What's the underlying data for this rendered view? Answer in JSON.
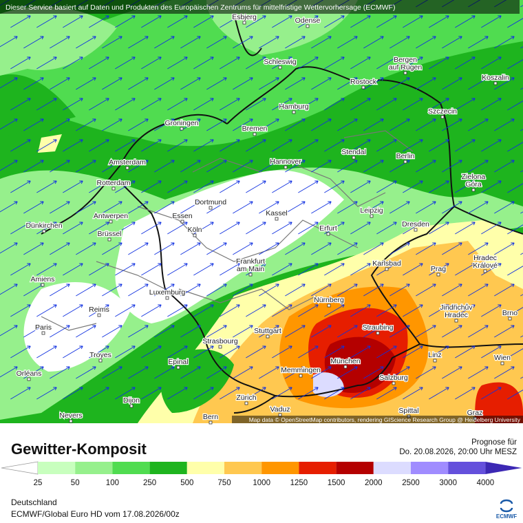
{
  "header": "Dieser Service basiert auf Daten und Produkten des Europäischen Zentrums für mittelfristige Wettervorhersage (ECMWF)",
  "attribution": "Map data © OpenStreetMap contributors, rendering GIScience Research Group @ Heidelberg University",
  "cities": [
    [
      "Esbjerg"
    ],
    [
      "Odense"
    ],
    [
      "Schleswig"
    ],
    [
      "Bergen",
      "auf Rügen"
    ],
    [
      "Rostock"
    ],
    [
      "Koszalin"
    ],
    [
      "Hamburg"
    ],
    [
      "Szczecin"
    ],
    [
      "Groningen"
    ],
    [
      "Bremen"
    ],
    [
      "Stendal"
    ],
    [
      "Berlin"
    ],
    [
      "Hannover"
    ],
    [
      "Amsterdam"
    ],
    [
      "Zielona",
      "Góra"
    ],
    [
      "Rotterdam"
    ],
    [
      "Dortmund"
    ],
    [
      "Leipzig"
    ],
    [
      "Kassel"
    ],
    [
      "Essen"
    ],
    [
      "Antwerpen"
    ],
    [
      "Dresden"
    ],
    [
      "Dünkirchen"
    ],
    [
      "Köln"
    ],
    [
      "Erfurt"
    ],
    [
      "Brüssel"
    ],
    [
      "Frankfurt",
      "am Main"
    ],
    [
      "Karlsbad"
    ],
    [
      "Hradec",
      "Králové"
    ],
    [
      "Prag"
    ],
    [
      "Amiens"
    ],
    [
      "Luxemburg"
    ],
    [
      "Nürnberg"
    ],
    [
      "Jindřichův",
      "Hradec"
    ],
    [
      "Brno"
    ],
    [
      "Reims"
    ],
    [
      "Paris"
    ],
    [
      "Straubing"
    ],
    [
      "Stuttgart"
    ],
    [
      "Strasbourg"
    ],
    [
      "Troyes"
    ],
    [
      "Epinal"
    ],
    [
      "München"
    ],
    [
      "Linz"
    ],
    [
      "Wien"
    ],
    [
      "Memmingen"
    ],
    [
      "Salzburg"
    ],
    [
      "Orléans"
    ],
    [
      "Dijon"
    ],
    [
      "Zürich"
    ],
    [
      "Vaduz"
    ],
    [
      "Spittal"
    ],
    [
      "Nevers"
    ],
    [
      "Bern"
    ],
    [
      "Graz"
    ]
  ],
  "title": "Gewitter-Komposit",
  "forecast_label": "Prognose für",
  "forecast_time": "Do. 20.08.2026, 20:00 Uhr MESZ",
  "legend": {
    "ticks": [
      25,
      50,
      100,
      250,
      500,
      750,
      1000,
      1250,
      1500,
      2000,
      2500,
      3000,
      4000
    ],
    "colors": [
      "#ffffff",
      "#c8ffbe",
      "#96f08c",
      "#50dc50",
      "#1eb41e",
      "#ffffaa",
      "#ffc850",
      "#ff9600",
      "#e61e00",
      "#b40000",
      "#dcdcff",
      "#a08cff",
      "#6450dc",
      "#3c28b4"
    ]
  },
  "region": "Deutschland",
  "model_run": "ECMWF/Global Euro HD vom  17.08.2026/00z",
  "logo": "ECMWF"
}
